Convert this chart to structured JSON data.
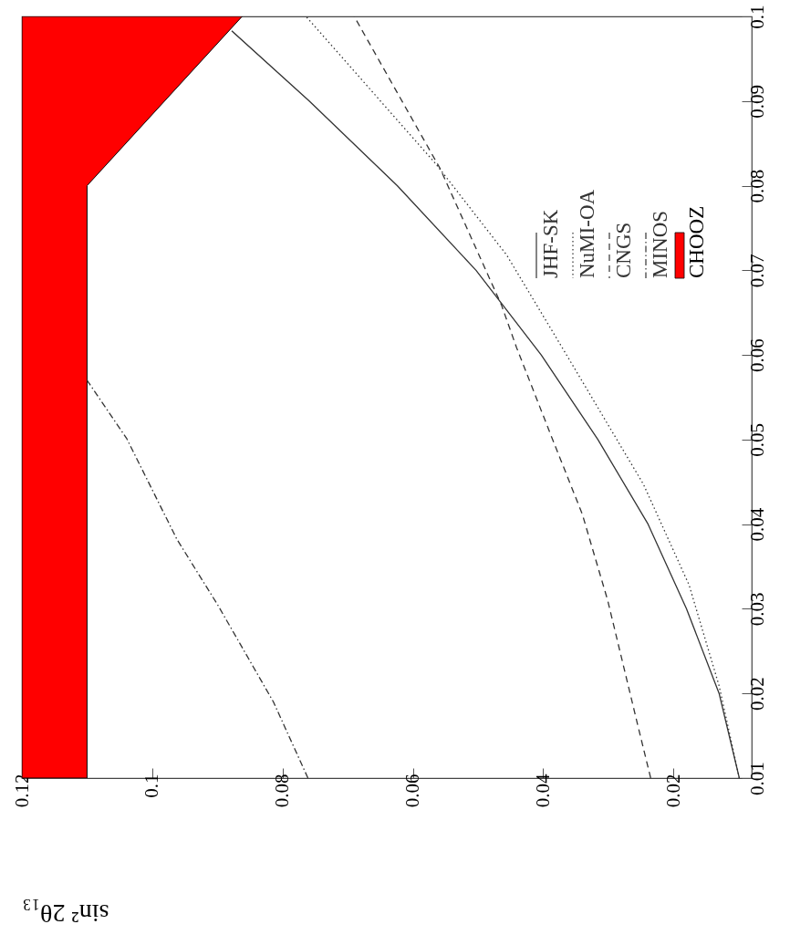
{
  "chart_data": {
    "type": "line",
    "xlabel": "sin² 2θ₁₃",
    "xlim": [
      0.12,
      0.008
    ],
    "xticks": [
      0.12,
      0.1,
      0.08,
      0.06,
      0.04,
      0.02
    ],
    "ylim": [
      0.01,
      0.1
    ],
    "yticks": [
      0.01,
      0.02,
      0.03,
      0.04,
      0.05,
      0.06,
      0.07,
      0.08,
      0.09,
      0.1
    ],
    "legend": "top right",
    "grid": false,
    "series": [
      {
        "name": "JHF-SK",
        "color": "#333333",
        "line_style": "solid",
        "values": [
          0.01,
          0.02,
          0.03,
          0.04,
          0.05,
          0.06,
          0.07,
          0.08,
          0.09,
          0.0983
        ],
        "x": [
          0.0099,
          0.013,
          0.018,
          0.0239,
          0.0316,
          0.0403,
          0.0503,
          0.0624,
          0.0759,
          0.0878
        ]
      },
      {
        "name": "NuMI-OA",
        "color": "#333333",
        "line_style": "dotted",
        "values": [
          0.01,
          0.0209,
          0.0328,
          0.0447,
          0.0605,
          0.0718,
          0.0826,
          0.1
        ],
        "x": [
          0.0099,
          0.013,
          0.0176,
          0.0246,
          0.0368,
          0.0456,
          0.0565,
          0.0764
        ]
      },
      {
        "name": "CNGS",
        "color": "#333333",
        "line_style": "dashed",
        "values": [
          0.01,
          0.0163,
          0.031,
          0.0412,
          0.0501,
          0.0609,
          0.0659,
          0.082,
          0.1
        ],
        "x": [
          0.0235,
          0.0255,
          0.0301,
          0.034,
          0.0386,
          0.0441,
          0.0464,
          0.0558,
          0.069
        ]
      },
      {
        "name": "MINOS",
        "color": "#333333",
        "line_style": "dashdot",
        "values": [
          0.01,
          0.019,
          0.0304,
          0.0382,
          0.0501,
          0.057
        ],
        "x": [
          0.0761,
          0.0814,
          0.0899,
          0.0962,
          0.1039,
          0.11
        ]
      },
      {
        "name": "CHOOZ",
        "color": "#ff0000",
        "type": "area",
        "x": [
          0.12,
          0.12,
          0.11,
          0.11,
          0.0862
        ],
        "values": [
          0.1,
          0.01,
          0.01,
          0.08,
          0.1
        ]
      }
    ]
  }
}
